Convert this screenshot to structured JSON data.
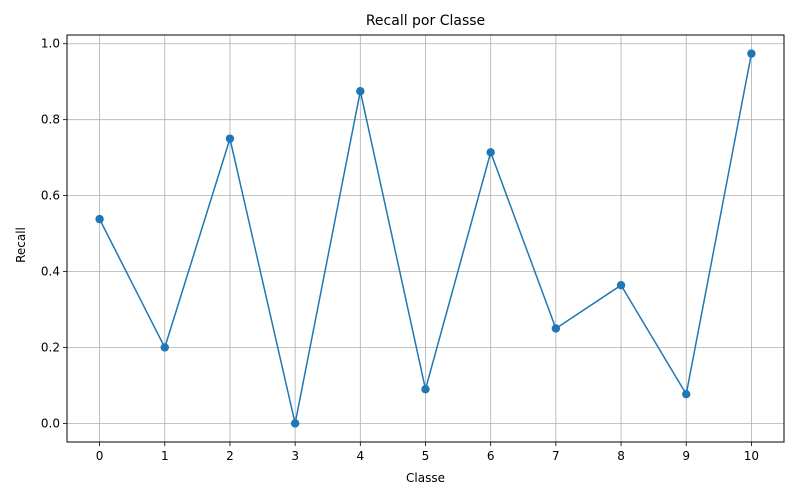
{
  "chart_data": {
    "type": "line",
    "title": "Recall por Classe",
    "xlabel": "Classe",
    "ylabel": "Recall",
    "x": [
      0,
      1,
      2,
      3,
      4,
      5,
      6,
      7,
      8,
      9,
      10
    ],
    "x_tick_labels": [
      "0",
      "1",
      "2",
      "3",
      "4",
      "5",
      "6",
      "7",
      "8",
      "9",
      "10"
    ],
    "series": [
      {
        "values": [
          0.538,
          0.2,
          0.75,
          0.0,
          0.875,
          0.09,
          0.714,
          0.25,
          0.364,
          0.077,
          0.974
        ],
        "color": "#1f77b4",
        "marker": "circle"
      }
    ],
    "y_ticks": [
      0.0,
      0.2,
      0.4,
      0.6,
      0.8,
      1.0
    ],
    "y_tick_labels": [
      "0.0",
      "0.2",
      "0.4",
      "0.6",
      "0.8",
      "1.0"
    ],
    "xlim": [
      -0.5,
      10.5
    ],
    "ylim": [
      -0.049,
      1.023
    ],
    "grid": true
  }
}
